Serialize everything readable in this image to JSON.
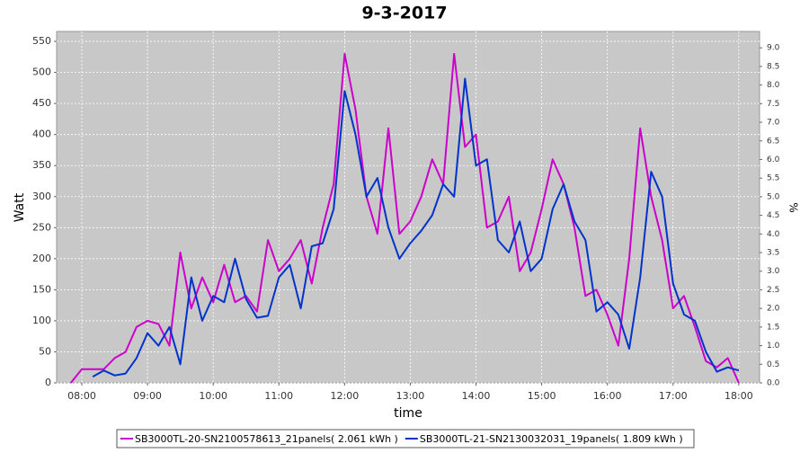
{
  "chart_data": {
    "type": "line",
    "title": "9-3-2017",
    "x_label": "time",
    "y_label": "Watt",
    "y2_label": "%",
    "x": [
      "07:50",
      "08:00",
      "08:10",
      "08:20",
      "08:30",
      "08:40",
      "08:50",
      "09:00",
      "09:10",
      "09:20",
      "09:30",
      "09:40",
      "09:50",
      "10:00",
      "10:10",
      "10:20",
      "10:30",
      "10:40",
      "10:50",
      "11:00",
      "11:10",
      "11:20",
      "11:30",
      "11:40",
      "11:50",
      "12:00",
      "12:10",
      "12:20",
      "12:30",
      "12:40",
      "12:50",
      "13:00",
      "13:10",
      "13:20",
      "13:30",
      "13:40",
      "13:50",
      "14:00",
      "14:10",
      "14:20",
      "14:30",
      "14:40",
      "14:50",
      "15:00",
      "15:10",
      "15:20",
      "15:30",
      "15:40",
      "15:50",
      "16:00",
      "16:10",
      "16:20",
      "16:30",
      "16:40",
      "16:50",
      "17:00",
      "17:10",
      "17:20",
      "17:30",
      "17:40",
      "17:50",
      "18:00"
    ],
    "series": [
      {
        "name": "SB3000TL-20-SN2100578613_21panels( 2.061 kWh )",
        "color": "#cc00cc",
        "values": [
          0,
          22,
          22,
          22,
          40,
          50,
          90,
          100,
          95,
          60,
          210,
          120,
          170,
          130,
          190,
          130,
          140,
          115,
          230,
          180,
          200,
          230,
          160,
          250,
          320,
          530,
          440,
          300,
          240,
          410,
          240,
          260,
          300,
          360,
          320,
          530,
          380,
          400,
          250,
          260,
          300,
          180,
          210,
          280,
          360,
          320,
          250,
          140,
          150,
          110,
          60,
          200,
          410,
          300,
          230,
          120,
          140,
          90,
          35,
          25,
          40,
          0
        ]
      },
      {
        "name": "SB3000TL-21-SN2130032031_19panels( 1.809 kWh )",
        "color": "#0033cc",
        "values": [
          null,
          null,
          10,
          20,
          12,
          15,
          40,
          80,
          60,
          90,
          30,
          170,
          100,
          140,
          130,
          200,
          135,
          105,
          108,
          170,
          190,
          120,
          220,
          225,
          280,
          470,
          400,
          300,
          330,
          250,
          200,
          225,
          245,
          270,
          320,
          300,
          490,
          350,
          360,
          230,
          210,
          260,
          180,
          200,
          280,
          320,
          260,
          230,
          115,
          130,
          110,
          55,
          170,
          340,
          300,
          160,
          110,
          100,
          50,
          18,
          25,
          20
        ]
      }
    ],
    "xlim": [
      "07:37",
      "18:19"
    ],
    "xticks": [
      "08:00",
      "09:00",
      "10:00",
      "11:00",
      "12:00",
      "13:00",
      "14:00",
      "15:00",
      "16:00",
      "17:00",
      "18:00"
    ],
    "ylim": [
      0,
      566
    ],
    "yticks": [
      0,
      50,
      100,
      150,
      200,
      250,
      300,
      350,
      400,
      450,
      500,
      550
    ],
    "y2lim": [
      0,
      9.44
    ],
    "y2ticks": [
      {
        "value": 0,
        "label": "0.0"
      },
      0.5,
      {
        "value": 1,
        "label": "1.0"
      },
      1.5,
      {
        "value": 2,
        "label": "2.0"
      },
      2.5,
      {
        "value": 3,
        "label": "3.0"
      },
      3.5,
      {
        "value": 4,
        "label": "4.0"
      },
      4.5,
      {
        "value": 5,
        "label": "5.0"
      },
      5.5,
      {
        "value": 6,
        "label": "6.0"
      },
      6.5,
      {
        "value": 7,
        "label": "7.0"
      },
      7.5,
      {
        "value": 8,
        "label": "8.0"
      },
      8.5,
      {
        "value": 9,
        "label": "9.0"
      }
    ],
    "grid": true
  }
}
